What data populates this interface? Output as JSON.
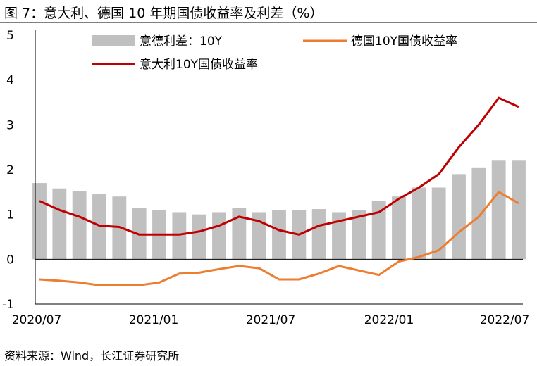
{
  "title": "图 7：意大利、德国 10 年期国债收益率及利差（%）",
  "source": "资料来源：Wind，长江证券研究所",
  "colors": {
    "spread": "#c0c0c0",
    "germany": "#ed7d31",
    "italy": "#c00000"
  },
  "chart_data": {
    "type": "line",
    "title": "图 7：意大利、德国 10 年期国债收益率及利差（%）",
    "xlabel": "",
    "ylabel": "",
    "ylim": [
      -1,
      5
    ],
    "yticks": [
      "5",
      "4",
      "3",
      "2",
      "1",
      "0",
      "-1"
    ],
    "xticks": [
      "2020/07",
      "2021/01",
      "2021/07",
      "2022/01",
      "2022/07"
    ],
    "legend": {
      "position": "top",
      "entries": [
        "意德利差：10Y",
        "德国10Y国债收益率",
        "意大利10Y国债收益率"
      ]
    },
    "grid": false,
    "x": [
      "2020/07",
      "2020/08",
      "2020/09",
      "2020/10",
      "2020/11",
      "2020/12",
      "2021/01",
      "2021/02",
      "2021/03",
      "2021/04",
      "2021/05",
      "2021/06",
      "2021/07",
      "2021/08",
      "2021/09",
      "2021/10",
      "2021/11",
      "2021/12",
      "2022/01",
      "2022/02",
      "2022/03",
      "2022/04",
      "2022/05",
      "2022/06",
      "2022/07"
    ],
    "series": [
      {
        "name": "意德利差：10Y",
        "kind": "bar",
        "values": [
          1.7,
          1.58,
          1.52,
          1.45,
          1.4,
          1.15,
          1.1,
          1.05,
          1.0,
          1.05,
          1.15,
          1.05,
          1.1,
          1.1,
          1.12,
          1.05,
          1.1,
          1.3,
          1.4,
          1.6,
          1.6,
          1.9,
          2.05,
          2.2,
          2.2
        ]
      },
      {
        "name": "德国10Y国债收益率",
        "kind": "line",
        "values": [
          -0.45,
          -0.48,
          -0.52,
          -0.58,
          -0.57,
          -0.58,
          -0.52,
          -0.32,
          -0.3,
          -0.22,
          -0.15,
          -0.2,
          -0.45,
          -0.45,
          -0.32,
          -0.15,
          -0.25,
          -0.35,
          -0.05,
          0.05,
          0.2,
          0.6,
          0.95,
          1.5,
          1.25
        ]
      },
      {
        "name": "意大利10Y国债收益率",
        "kind": "line",
        "values": [
          1.3,
          1.1,
          0.95,
          0.75,
          0.72,
          0.55,
          0.55,
          0.55,
          0.62,
          0.75,
          0.95,
          0.85,
          0.65,
          0.55,
          0.75,
          0.85,
          0.95,
          1.05,
          1.35,
          1.6,
          1.9,
          2.5,
          3.0,
          3.6,
          3.4
        ]
      }
    ]
  }
}
